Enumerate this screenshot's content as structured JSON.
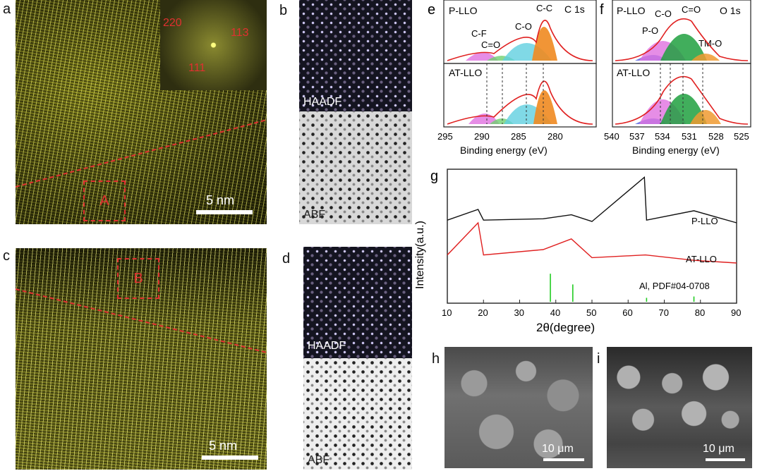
{
  "panels": {
    "a": {
      "letter": "a",
      "scale": "5 nm",
      "region": "A",
      "fft": [
        "220",
        "113",
        "111"
      ]
    },
    "b": {
      "letter": "b",
      "top": "HAADF",
      "bottom": "ABF"
    },
    "c": {
      "letter": "c",
      "scale": "5 nm",
      "region": "B"
    },
    "d": {
      "letter": "d",
      "top": "HAADF",
      "bottom": "ABF"
    },
    "e": {
      "letter": "e",
      "top_label": "P-LLO",
      "bottom_label": "AT-LLO",
      "core": "C 1s",
      "peaks": [
        "C-C",
        "C-O",
        "C=O",
        "C-F"
      ],
      "xlabel": "Binding energy (eV)",
      "ticks": [
        "295",
        "290",
        "285",
        "280"
      ]
    },
    "f": {
      "letter": "f",
      "top_label": "P-LLO",
      "bottom_label": "AT-LLO",
      "core": "O 1s",
      "peaks": [
        "C=O",
        "C-O",
        "P-O",
        "TM-O"
      ],
      "xlabel": "Binding energy (eV)",
      "ticks": [
        "540",
        "537",
        "534",
        "531",
        "528",
        "525"
      ]
    },
    "g": {
      "letter": "g",
      "ylabel": "Intensity(a.u.)",
      "xlabel": "2θ(degree)",
      "series": [
        "P-LLO",
        "AT-LLO",
        "Al, PDF#04-0708"
      ],
      "ticks": [
        "10",
        "20",
        "30",
        "40",
        "50",
        "60",
        "70",
        "80",
        "90"
      ]
    },
    "h": {
      "letter": "h",
      "scale": "10 μm"
    },
    "i": {
      "letter": "i",
      "scale": "10 μm"
    }
  },
  "chart_data": [
    {
      "type": "line",
      "panel": "g",
      "xlabel": "2θ(degree)",
      "ylabel": "Intensity(a.u.)",
      "xlim": [
        10,
        90
      ],
      "series": [
        {
          "name": "P-LLO",
          "color": "#111111",
          "x": [
            10,
            18.5,
            20,
            36.5,
            44.3,
            50,
            64.5,
            65.1,
            78.2,
            90
          ],
          "y": [
            0.62,
            0.7,
            0.62,
            0.63,
            0.66,
            0.61,
            0.94,
            0.62,
            0.69,
            0.6
          ]
        },
        {
          "name": "AT-LLO",
          "color": "#e02020",
          "x": [
            10,
            18.5,
            20,
            36.5,
            44.3,
            50,
            64.8,
            78.2,
            90
          ],
          "y": [
            0.36,
            0.6,
            0.36,
            0.4,
            0.48,
            0.34,
            0.36,
            0.32,
            0.3
          ]
        },
        {
          "name": "Al, PDF#04-0708",
          "color": "#22cc22",
          "x": [
            38.5,
            44.7,
            65.1,
            78.2
          ],
          "y": [
            0.22,
            0.14,
            0.04,
            0.05
          ]
        }
      ]
    }
  ]
}
